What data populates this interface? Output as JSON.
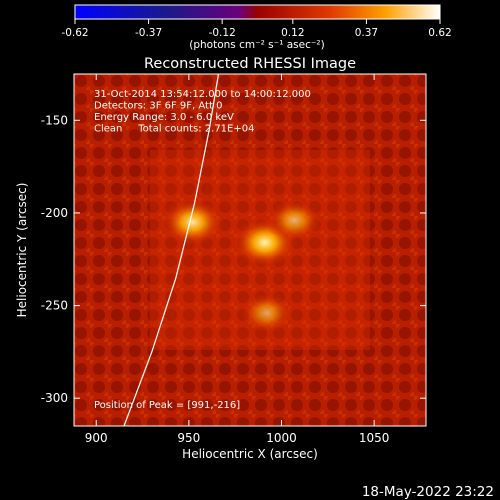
{
  "chart_data": {
    "type": "heatmap",
    "title": "Reconstructed RHESSI Image",
    "xlabel": "Heliocentric X (arcsec)",
    "ylabel": "Heliocentric Y (arcsec)",
    "xlim": [
      888,
      1078
    ],
    "ylim": [
      -315,
      -125
    ],
    "x_ticks": [
      "900",
      "950",
      "1000",
      "1050"
    ],
    "x_tick_values": [
      900,
      950,
      1000,
      1050
    ],
    "y_ticks": [
      "-150",
      "-200",
      "-250",
      "-300"
    ],
    "y_tick_values": [
      -150,
      -200,
      -250,
      -300
    ],
    "colorbar": {
      "ticks": [
        "-0.62",
        "-0.37",
        "-0.12",
        "0.12",
        "0.37",
        "0.62"
      ],
      "tick_values": [
        -0.62,
        -0.37,
        -0.12,
        0.12,
        0.37,
        0.62
      ],
      "range": [
        -0.62,
        0.62
      ],
      "unit_label": "(photons cm⁻² s⁻¹ asec⁻²)"
    },
    "info_lines": [
      "31-Oct-2014 13:54:12.000 to 14:00:12.000",
      "Detectors: 3F 6F 9F, Att 0",
      "Energy Range: 3.0 - 6.0 keV",
      "Clean     Total counts: 2.71E+04"
    ],
    "peak_label": "Position of Peak = [991,-216]",
    "sources": [
      {
        "x": 952,
        "y": -205,
        "intensity": 0.58
      },
      {
        "x": 991,
        "y": -216,
        "intensity": 0.62
      },
      {
        "x": 1007,
        "y": -204,
        "intensity": 0.42
      },
      {
        "x": 992,
        "y": -254,
        "intensity": 0.38
      }
    ],
    "limb_curve": [
      [
        915,
        -315
      ],
      [
        930,
        -275
      ],
      [
        943,
        -235
      ],
      [
        953,
        -195
      ],
      [
        961,
        -155
      ],
      [
        966,
        -125
      ]
    ],
    "date_stamp": "18-May-2022 23:22"
  }
}
